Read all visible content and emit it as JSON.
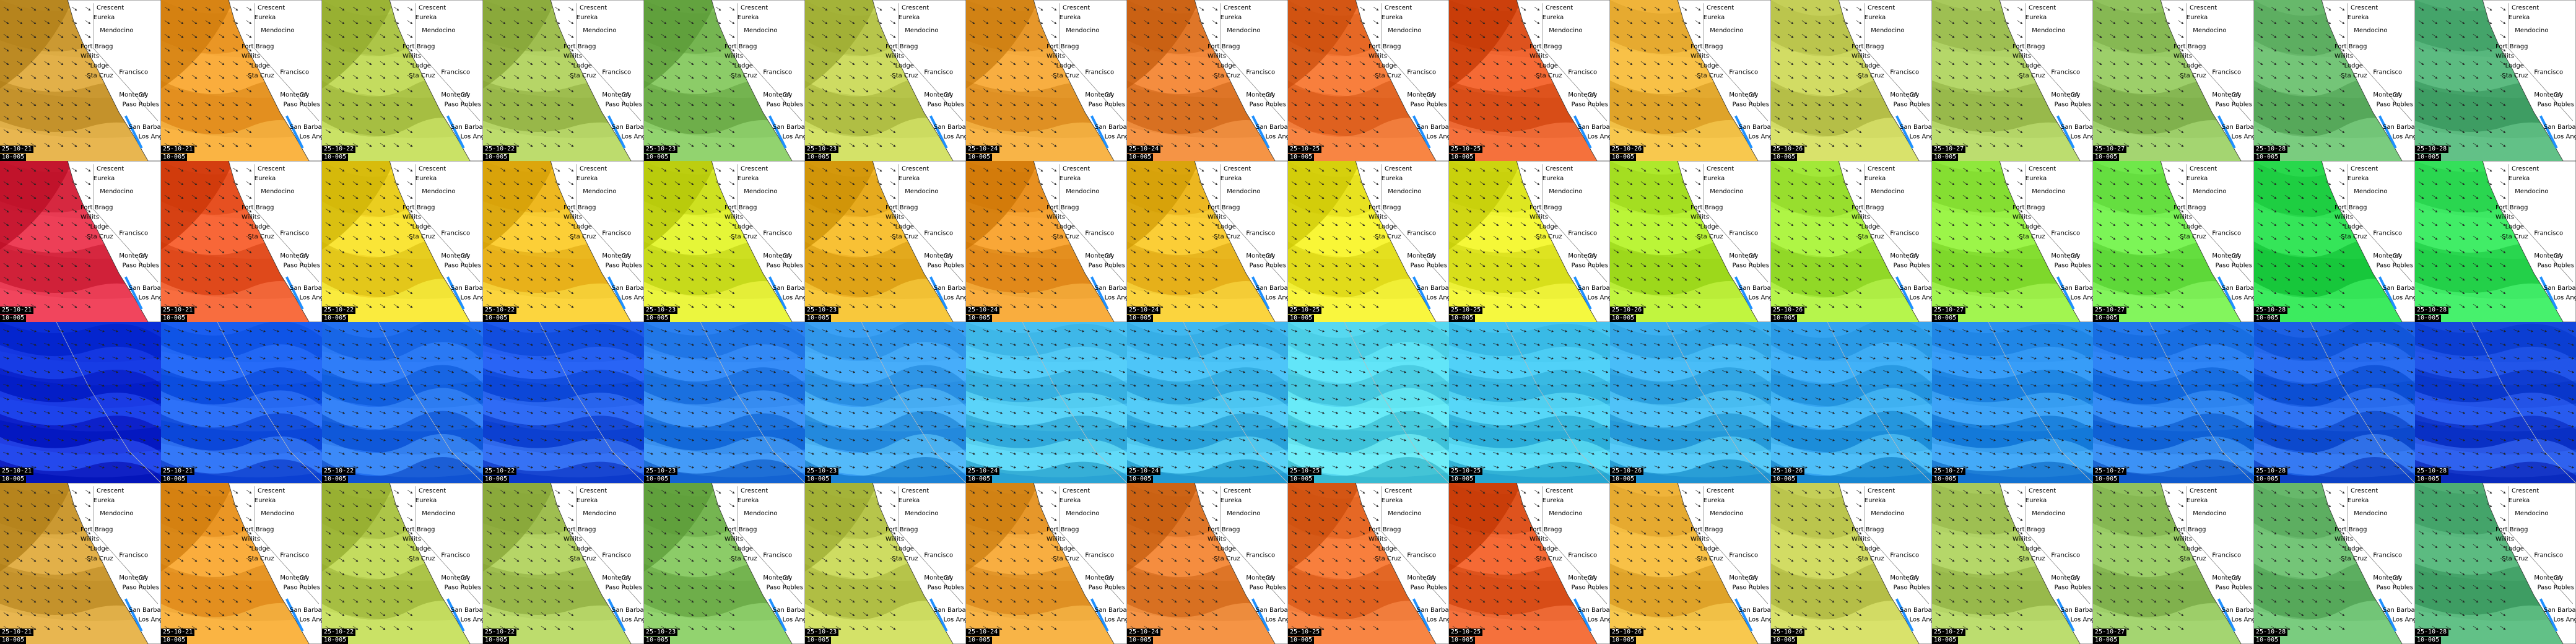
{
  "tiles": [
    {
      "date": "25-10-21",
      "res": "10-005"
    },
    {
      "date": "25-10-21",
      "res": "10-005"
    },
    {
      "date": "25-10-22",
      "res": "10-005"
    },
    {
      "date": "25-10-22",
      "res": "10-005"
    },
    {
      "date": "25-10-23",
      "res": "10-005"
    },
    {
      "date": "25-10-23",
      "res": "10-005"
    },
    {
      "date": "25-10-24",
      "res": "10-005"
    },
    {
      "date": "25-10-24",
      "res": "10-005"
    },
    {
      "date": "25-10-25",
      "res": "10-005"
    },
    {
      "date": "25-10-25",
      "res": "10-005"
    },
    {
      "date": "25-10-26",
      "res": "10-005"
    },
    {
      "date": "25-10-26",
      "res": "10-005"
    },
    {
      "date": "25-10-27",
      "res": "10-005"
    },
    {
      "date": "25-10-27",
      "res": "10-005"
    },
    {
      "date": "25-10-28",
      "res": "10-005"
    },
    {
      "date": "25-10-28",
      "res": "10-005"
    }
  ],
  "places": [
    "Crescent",
    "Eureka",
    "Mendocino",
    "Fort Bragg",
    "Willits",
    "Lodge",
    "Sta Cruz",
    "Francisco",
    "Monterey",
    "Paso Robles",
    "CA",
    "San Barbara",
    "Los Angeles"
  ],
  "colors": {
    "land": "#ffffff",
    "ocean_blue": "#1e90ff",
    "stamp_bg": "#000000",
    "stamp_fg": "#ffffff",
    "wave_row": [
      "#d4a33c",
      "#f4a030",
      "#b7cf52",
      "#a9c85a",
      "#7fbf5b",
      "#c0cf55",
      "#f0a134",
      "#e98032",
      "#f07230",
      "#e85d28",
      "#f0b43a",
      "#c5cf58",
      "#a8c95c",
      "#90c25d",
      "#67b86b",
      "#4fae74"
    ],
    "wind_row": [
      "#e0324a",
      "#f05a2c",
      "#f4d82a",
      "#f8c22a",
      "#d8ea2c",
      "#f0b428",
      "#f29a2a",
      "#f6c02a",
      "#f2ec2a",
      "#e8f02c",
      "#aee82c",
      "#a2e838",
      "#8fe83c",
      "#6fe84a",
      "#28d84c",
      "#34e05a"
    ],
    "current_row": [
      "#0a2fd8",
      "#1a5ef0",
      "#2270f0",
      "#1c58e8",
      "#2a80f0",
      "#3aa0f4",
      "#48c0f2",
      "#40b8f0",
      "#56d8f0",
      "#44c4f0",
      "#3cb0f0",
      "#34a4f0",
      "#2a90f0",
      "#2278ec",
      "#1c60e4",
      "#1548dc"
    ]
  }
}
